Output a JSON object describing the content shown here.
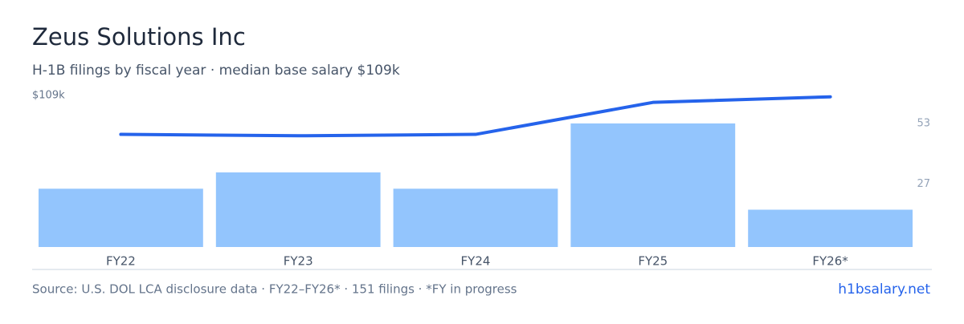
{
  "chart_data": {
    "type": "bar_line",
    "title": "Zeus Solutions Inc",
    "subtitle": "H-1B filings by fiscal year · median base salary $109k",
    "categories": [
      "FY22",
      "FY23",
      "FY24",
      "FY25",
      "FY26*"
    ],
    "series": [
      {
        "name": "H-1B filings",
        "type": "bar",
        "axis": "y2",
        "color": "#93c5fd",
        "values": [
          25,
          32,
          25,
          53,
          16
        ]
      },
      {
        "name": "Median base salary",
        "type": "line",
        "axis": "y",
        "color": "#2563eb",
        "values": [
          81,
          80,
          81,
          104,
          108
        ]
      }
    ],
    "ylim": [
      0,
      109
    ],
    "yticks": [
      {
        "value": 109,
        "label": "$109k"
      }
    ],
    "y2lim": [
      0,
      65
    ],
    "y2ticks": [
      27,
      53
    ],
    "footer": "Source: U.S. DOL LCA disclosure data · FY22–FY26* · 151 filings · *FY in progress",
    "link": "h1bsalary.net"
  }
}
